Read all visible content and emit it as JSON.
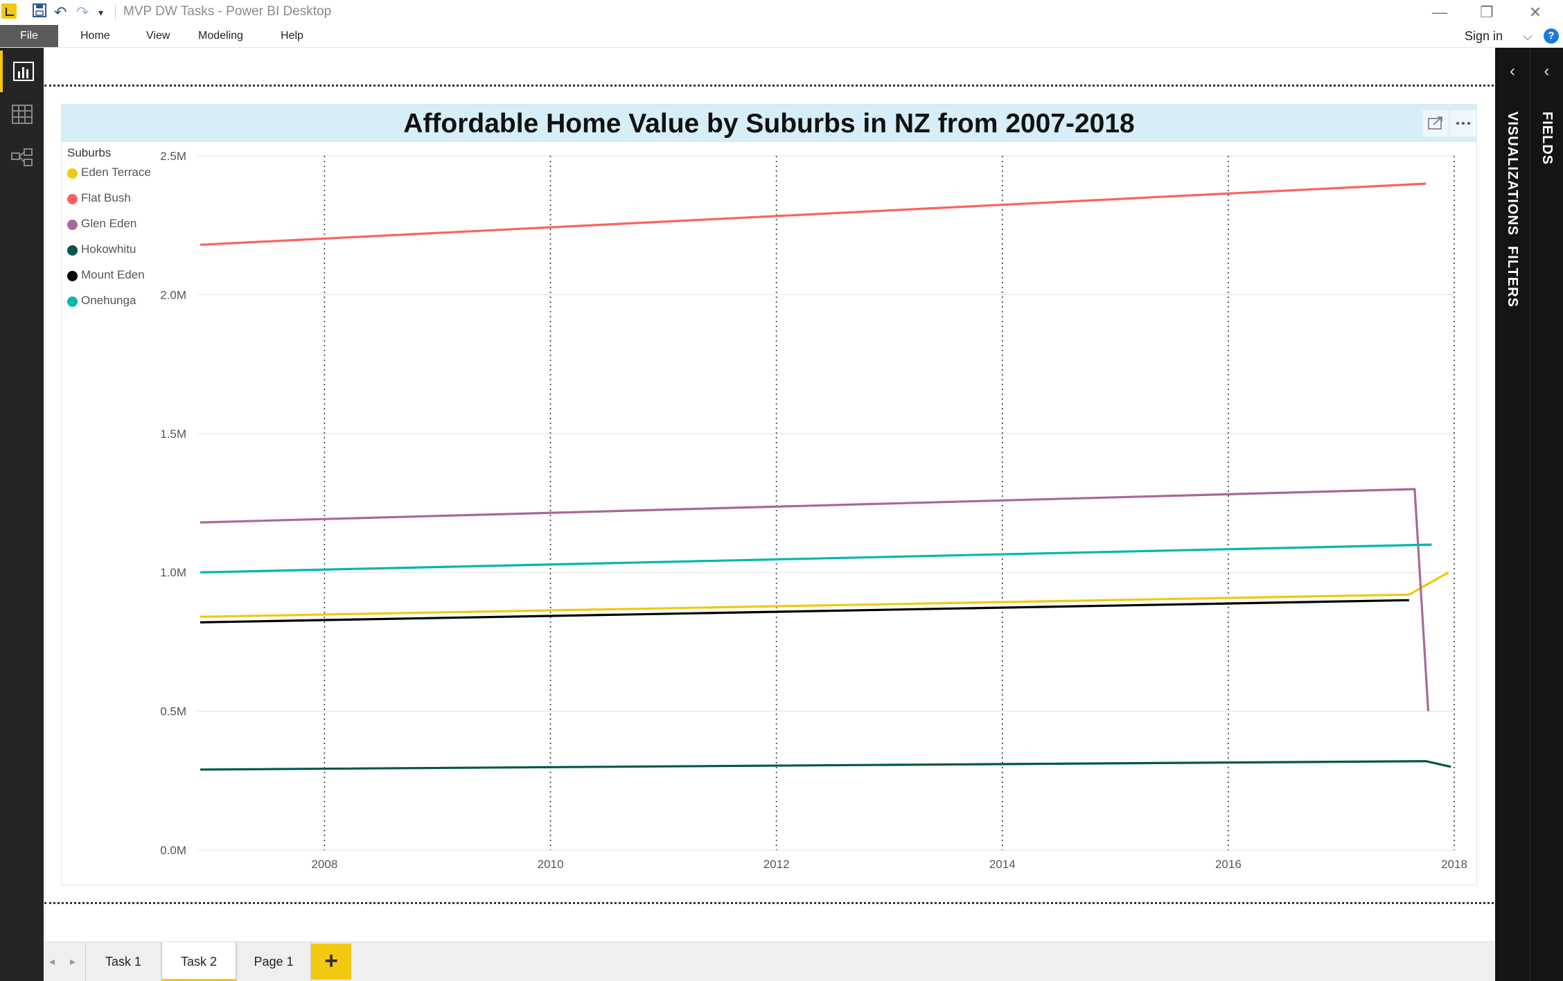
{
  "window": {
    "title": "MVP DW Tasks - Power BI Desktop",
    "controls": [
      "—",
      "❐",
      "✕"
    ]
  },
  "menu": {
    "file": "File",
    "items": [
      "Home",
      "View",
      "Modeling",
      "Help"
    ],
    "sign_in": "Sign in",
    "help": "?"
  },
  "panes": {
    "visualizations": "VISUALIZATIONS",
    "filters": "FILTERS",
    "fields": "FIELDS"
  },
  "pages": {
    "tabs": [
      {
        "label": "Task 1",
        "active": false
      },
      {
        "label": "Task 2",
        "active": true
      },
      {
        "label": "Page 1",
        "active": false
      }
    ],
    "add": "+"
  },
  "colors": {
    "accent": "#f2c811",
    "header_bg": "#d5eef7"
  },
  "chart_data": {
    "type": "line",
    "title": "Affordable Home Value by Suburbs in NZ from 2007-2018",
    "legend_title": "Suburbs",
    "legend_position": "left",
    "xlabel": "",
    "ylabel": "",
    "xlim": [
      2006.9,
      2018
    ],
    "ylim": [
      0,
      2500000
    ],
    "x_ticks": [
      "2008",
      "2010",
      "2012",
      "2014",
      "2016",
      "2018"
    ],
    "y_ticks": [
      "0.0M",
      "0.5M",
      "1.0M",
      "1.5M",
      "2.0M",
      "2.5M"
    ],
    "grid": {
      "horizontal": "solid",
      "vertical": "dotted"
    },
    "series": [
      {
        "name": "Eden Terrace",
        "color": "#f2c80f",
        "points": [
          [
            2006.9,
            840000
          ],
          [
            2017.6,
            920000
          ],
          [
            2017.95,
            1000000
          ]
        ]
      },
      {
        "name": "Flat Bush",
        "color": "#fd625e",
        "points": [
          [
            2006.9,
            2180000
          ],
          [
            2017.75,
            2400000
          ]
        ]
      },
      {
        "name": "Glen Eden",
        "color": "#a66999",
        "points": [
          [
            2006.9,
            1180000
          ],
          [
            2017.65,
            1300000
          ],
          [
            2017.77,
            500000
          ]
        ]
      },
      {
        "name": "Hokowhitu",
        "color": "#01574c",
        "points": [
          [
            2006.9,
            290000
          ],
          [
            2017.75,
            320000
          ],
          [
            2017.97,
            300000
          ]
        ]
      },
      {
        "name": "Mount Eden",
        "color": "#000000",
        "points": [
          [
            2006.9,
            820000
          ],
          [
            2017.6,
            900000
          ]
        ]
      },
      {
        "name": "Onehunga",
        "color": "#01b8aa",
        "points": [
          [
            2006.9,
            1000000
          ],
          [
            2017.8,
            1100000
          ]
        ]
      }
    ]
  }
}
